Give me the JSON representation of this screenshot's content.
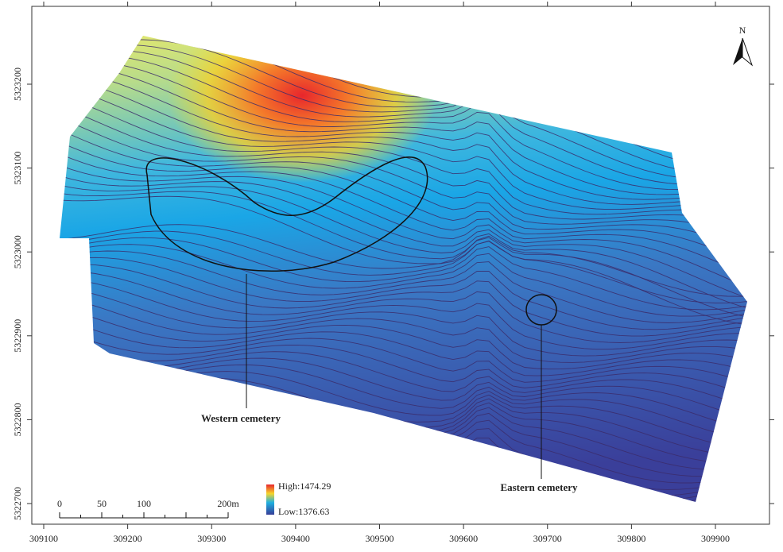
{
  "map": {
    "x_ticks": [
      309100,
      309200,
      309300,
      309400,
      309500,
      309600,
      309700,
      309800,
      309900
    ],
    "y_ticks": [
      5322700,
      5322800,
      5322900,
      5323000,
      5323100,
      5323200
    ],
    "north": "N",
    "scale_bar": [
      "0",
      "50",
      "100",
      "200m"
    ],
    "legend": {
      "high": "High:1474.29",
      "low": "Low:1376.63"
    },
    "labels": {
      "western": "Western cemetery",
      "eastern": "Eastern cemetery"
    }
  }
}
